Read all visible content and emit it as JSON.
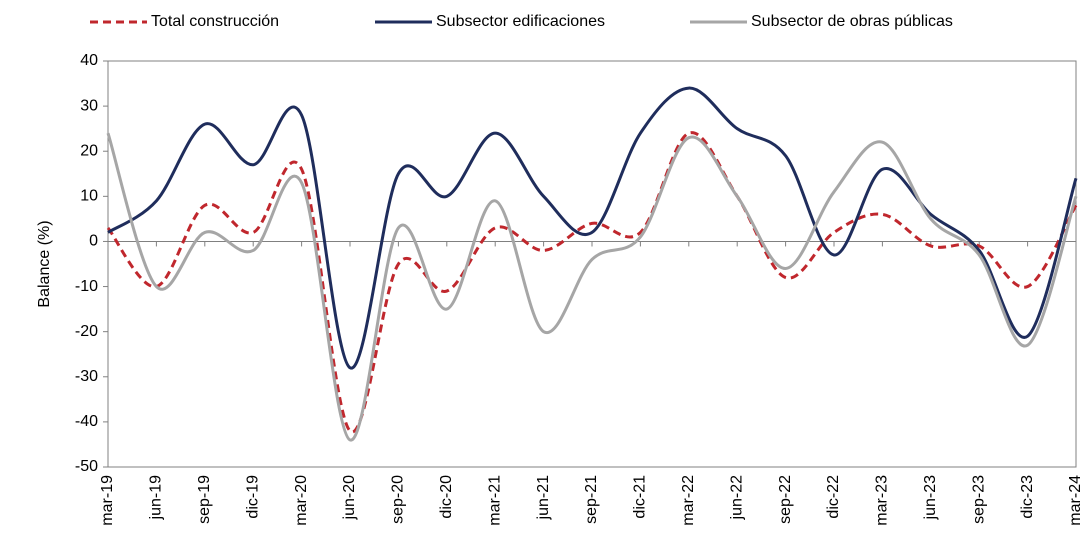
{
  "chart_data": {
    "type": "line",
    "y_label": "Balance (%)",
    "legend": "top",
    "smooth": true,
    "categories": [
      "mar-19",
      "jun-19",
      "sep-19",
      "dic-19",
      "mar-20",
      "jun-20",
      "sep-20",
      "dic-20",
      "mar-21",
      "jun-21",
      "sep-21",
      "dic-21",
      "mar-22",
      "jun-22",
      "sep-22",
      "dic-22",
      "mar-23",
      "jun-23",
      "sep-23",
      "dic-23",
      "mar-24"
    ],
    "series": [
      {
        "name": "Total construcción",
        "color": "#c0272d",
        "line_style": "dashed",
        "values": [
          3,
          -10,
          8,
          2,
          16,
          -42,
          -5,
          -11,
          3,
          -2,
          4,
          2,
          24,
          10,
          -8,
          2,
          6,
          -1,
          -1,
          -10,
          8
        ]
      },
      {
        "name": "Subsector edificaciones",
        "color": "#1f2d5c",
        "line_style": "solid",
        "values": [
          2,
          9,
          26,
          17,
          28,
          -28,
          15,
          10,
          24,
          10,
          2,
          24,
          34,
          25,
          19,
          -3,
          16,
          6,
          -2,
          -21,
          14
        ]
      },
      {
        "name": "Subsector de obras públicas",
        "color": "#a6a6a6",
        "line_style": "solid",
        "values": [
          24,
          -10,
          2,
          -2,
          13,
          -44,
          3,
          -15,
          9,
          -20,
          -4,
          1,
          23,
          10,
          -6,
          11,
          22,
          5,
          -3,
          -23,
          10
        ]
      }
    ],
    "ylim": [
      -50,
      40
    ],
    "yticks": [
      -50,
      -40,
      -30,
      -20,
      -10,
      0,
      10,
      20,
      30,
      40
    ]
  }
}
